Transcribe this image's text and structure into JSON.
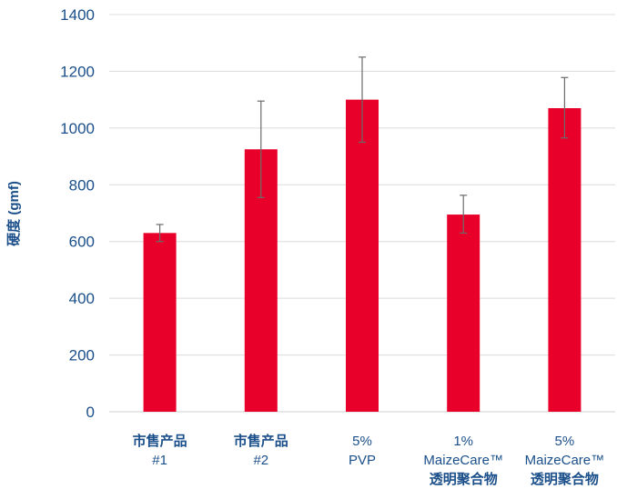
{
  "chart_data": {
    "type": "bar",
    "ylabel": "硬度 (gmf)",
    "ylim": [
      0,
      1400
    ],
    "yticks": [
      0,
      200,
      400,
      600,
      800,
      1000,
      1200,
      1400
    ],
    "grid": true,
    "bar_color": "#e8002a",
    "categories": [
      [
        "市售产品",
        "#1"
      ],
      [
        "市售产品",
        "#2"
      ],
      [
        "5%",
        "PVP"
      ],
      [
        "1%",
        "MaizeCare™",
        "透明聚合物"
      ],
      [
        "5%",
        "MaizeCare™",
        "透明聚合物"
      ]
    ],
    "values": [
      630,
      925,
      1100,
      695,
      1070
    ],
    "error_low": [
      600,
      755,
      950,
      630,
      965
    ],
    "error_high": [
      660,
      1095,
      1250,
      763,
      1178
    ]
  }
}
